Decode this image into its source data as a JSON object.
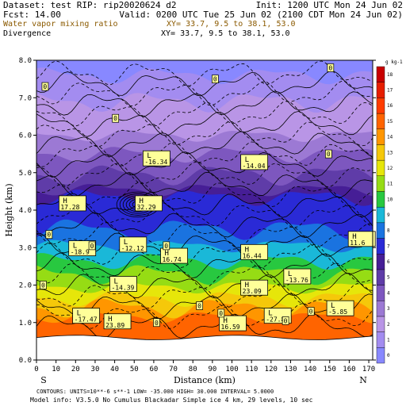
{
  "header": {
    "dataset": "Dataset: test  RIP: rip20020624 d2",
    "init": "Init: 1200 UTC Mon 24 Jun 02",
    "fcst": "Fcst:    14.00",
    "valid": "Valid: 0200 UTC Tue 25 Jun 02 (2100 CDT Mon 24 Jun 02)",
    "field1": "Water vapor mixing ratio",
    "xy1": "XY=  33.7,  9.5 to  38.1, 53.0",
    "field2": "Divergence",
    "xy2": "XY=  33.7,  9.5 to  38.1, 53.0"
  },
  "footer": {
    "contours": "CONTOURS:  UNITS=10**-6 s**-1   LOW=  -35.000      HIGH=  30.000      INTERVAL=   5.0000",
    "model": "Model info: V3.5.0 No Cumulus Blackadar  Simple ice    4 km,  29 levels,  10 sec"
  },
  "colors": {
    "frame": "#000000",
    "ground": "#ffffff",
    "contour": "#000000",
    "label_bg": "#ffff99"
  },
  "chart_data": {
    "type": "heatmap",
    "xlabel": "Distance (km)",
    "ylabel": "Height (km)",
    "xlim": [
      0,
      172
    ],
    "ylim": [
      0,
      8
    ],
    "xticks": [
      0,
      10,
      20,
      30,
      40,
      50,
      60,
      70,
      80,
      90,
      100,
      110,
      120,
      130,
      140,
      150,
      160,
      170
    ],
    "yticks": [
      0.0,
      1.0,
      2.0,
      3.0,
      4.0,
      5.0,
      6.0,
      7.0,
      8.0
    ],
    "x_end_labels": {
      "left": "S",
      "right": "N"
    },
    "colorbar": {
      "unit": "g kg-1",
      "levels": [
        0,
        1,
        2,
        3,
        4,
        5,
        6,
        7,
        8,
        9,
        10,
        11,
        12,
        13,
        14,
        15,
        16,
        17,
        18
      ],
      "colors": [
        "#8888ff",
        "#a38cf0",
        "#b995e6",
        "#9c79d4",
        "#7d57bf",
        "#5f3ca8",
        "#461e96",
        "#2a2ad6",
        "#1a73e0",
        "#1ab8d8",
        "#28c840",
        "#96dc14",
        "#e6e60a",
        "#f5c80a",
        "#ff9600",
        "#ff6400",
        "#ff3c00",
        "#e61e00",
        "#c80000"
      ]
    },
    "moisture_layers": [
      {
        "level": 0,
        "top": 8.0
      },
      {
        "level": 1,
        "top": 7.6
      },
      {
        "level": 2,
        "top": 6.9
      },
      {
        "level": 3,
        "top": 6.0
      },
      {
        "level": 4,
        "top": 5.5
      },
      {
        "level": 5,
        "top": 4.95
      },
      {
        "level": 6,
        "top": 4.55
      },
      {
        "level": 7,
        "top": 4.35
      },
      {
        "level": 8,
        "top": 3.5
      },
      {
        "level": 9,
        "top": 3.05
      },
      {
        "level": 10,
        "top": 2.65
      },
      {
        "level": 11,
        "top": 2.3
      },
      {
        "level": 12,
        "top": 1.95
      },
      {
        "level": 13,
        "top": 1.65
      },
      {
        "level": 14,
        "top": 1.4
      },
      {
        "level": 15,
        "top": 1.15
      }
    ],
    "ground_height": 0.6,
    "extrema": [
      {
        "type": "L",
        "value": "-16.34",
        "x": 61,
        "y": 5.35
      },
      {
        "type": "L",
        "value": "-14.04",
        "x": 111,
        "y": 5.25
      },
      {
        "type": "H",
        "value": "17.28",
        "x": 18,
        "y": 4.15
      },
      {
        "type": "H",
        "value": "32.29",
        "x": 57,
        "y": 4.15
      },
      {
        "type": "L",
        "value": "-18.9",
        "x": 23,
        "y": 2.95
      },
      {
        "type": "L",
        "value": "-12.12",
        "x": 49,
        "y": 3.05
      },
      {
        "type": "H",
        "value": "16.74",
        "x": 70,
        "y": 2.75
      },
      {
        "type": "H",
        "value": "16.44",
        "x": 111,
        "y": 2.85
      },
      {
        "type": "L",
        "value": "-13.76",
        "x": 133,
        "y": 2.2
      },
      {
        "type": "H",
        "value": "11.6",
        "x": 166,
        "y": 3.2
      },
      {
        "type": "L",
        "value": "-14.39",
        "x": 44,
        "y": 2.0
      },
      {
        "type": "H",
        "value": "23.09",
        "x": 111,
        "y": 1.9
      },
      {
        "type": "L",
        "value": "-17.47",
        "x": 25,
        "y": 1.15
      },
      {
        "type": "H",
        "value": "23.89",
        "x": 41,
        "y": 1.0
      },
      {
        "type": "L",
        "value": "-27.8",
        "x": 123,
        "y": 1.15
      },
      {
        "type": "L",
        "value": "-5.85",
        "x": 155,
        "y": 1.35
      },
      {
        "type": "H",
        "value": "16.59",
        "x": 100,
        "y": 0.95
      }
    ],
    "zero_labels": [
      {
        "x": 2,
        "y": 7.3
      },
      {
        "x": 89,
        "y": 7.5
      },
      {
        "x": 148,
        "y": 7.8
      },
      {
        "x": 38,
        "y": 6.45
      },
      {
        "x": 147,
        "y": 5.5
      },
      {
        "x": 4,
        "y": 3.35
      },
      {
        "x": 26,
        "y": 3.05
      },
      {
        "x": 64,
        "y": 3.05
      },
      {
        "x": 1,
        "y": 2.0
      },
      {
        "x": 81,
        "y": 1.45
      },
      {
        "x": 92,
        "y": 1.25
      },
      {
        "x": 125,
        "y": 1.05
      },
      {
        "x": 138,
        "y": 1.3
      },
      {
        "x": 59,
        "y": 1.0
      }
    ]
  }
}
